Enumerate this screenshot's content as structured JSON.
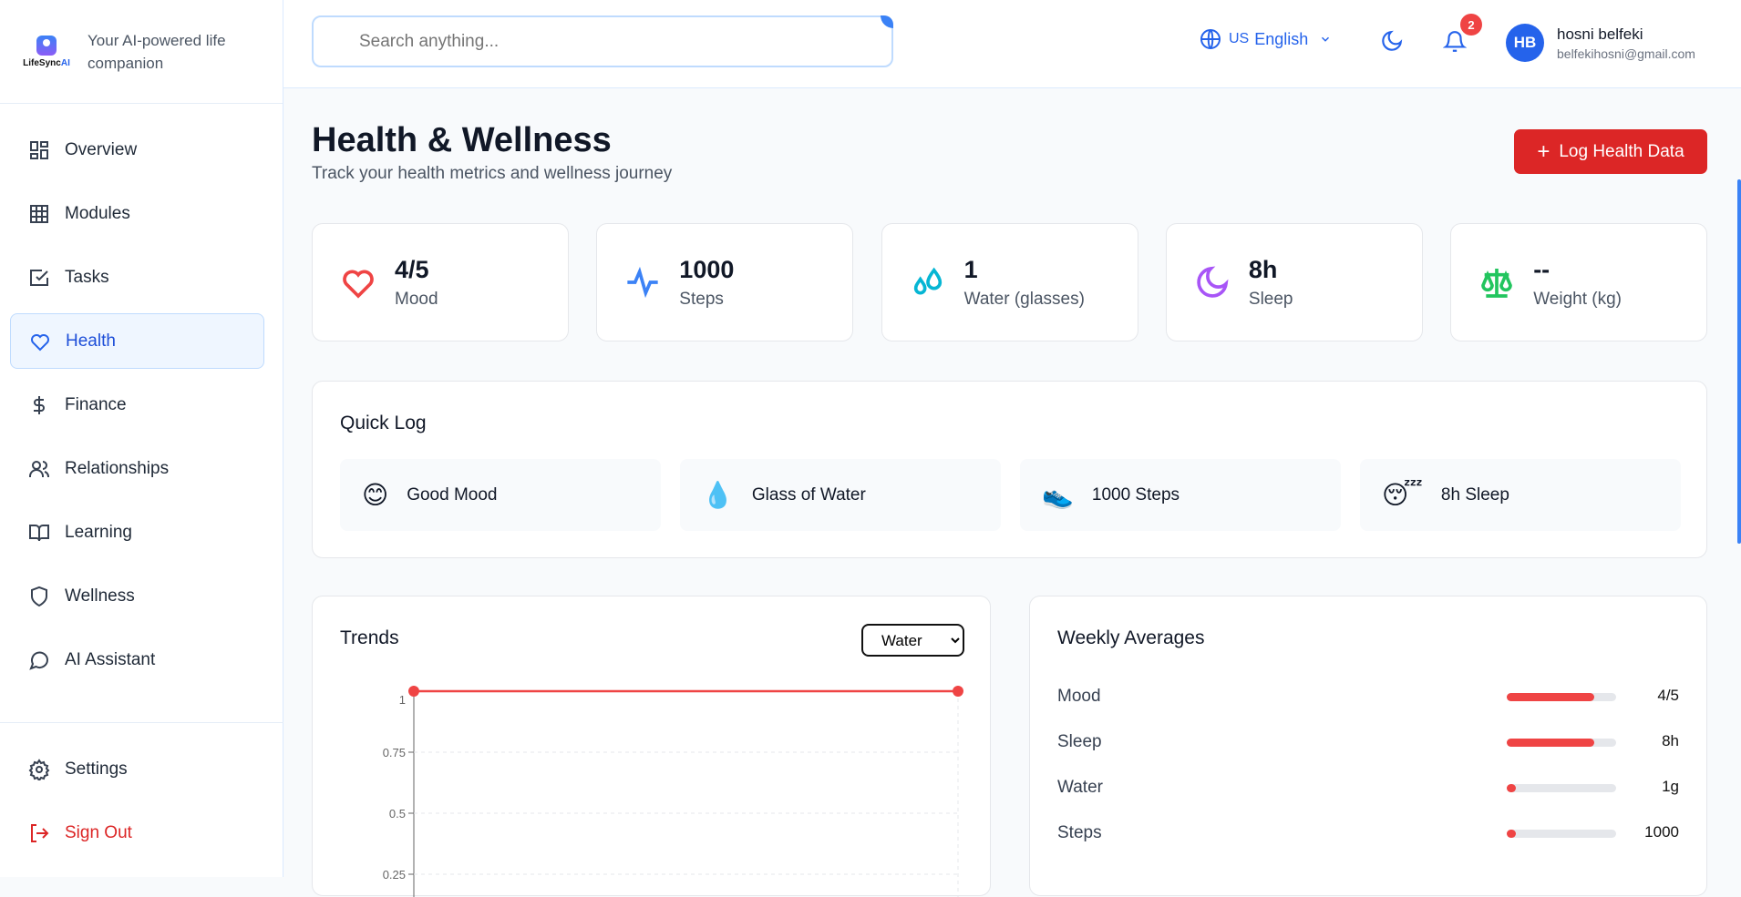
{
  "brand": {
    "logo_text": "LifeSync",
    "logo_accent": "AI",
    "tagline": "Your AI-powered life companion"
  },
  "sidebar": {
    "items": [
      {
        "label": "Overview",
        "icon": "grid-icon"
      },
      {
        "label": "Modules",
        "icon": "table-icon"
      },
      {
        "label": "Tasks",
        "icon": "checkbox-icon"
      },
      {
        "label": "Health",
        "icon": "heart-icon",
        "active": true
      },
      {
        "label": "Finance",
        "icon": "dollar-icon"
      },
      {
        "label": "Relationships",
        "icon": "users-icon"
      },
      {
        "label": "Learning",
        "icon": "book-icon"
      },
      {
        "label": "Wellness",
        "icon": "shield-icon"
      },
      {
        "label": "AI Assistant",
        "icon": "chat-icon"
      }
    ],
    "settings": "Settings",
    "signout": "Sign Out"
  },
  "header": {
    "search_placeholder": "Search anything...",
    "lang_code": "US",
    "lang": "English",
    "notifications": "2",
    "user": {
      "initials": "HB",
      "name": "hosni belfeki",
      "email": "belfekihosni@gmail.com"
    }
  },
  "page": {
    "title": "Health & Wellness",
    "subtitle": "Track your health metrics and wellness journey",
    "log_button": "Log Health Data"
  },
  "stats": [
    {
      "value": "4/5",
      "label": "Mood",
      "color": "#ef4444"
    },
    {
      "value": "1000",
      "label": "Steps",
      "color": "#3b82f6"
    },
    {
      "value": "1",
      "label": "Water (glasses)",
      "color": "#06b6d4"
    },
    {
      "value": "8h",
      "label": "Sleep",
      "color": "#a855f7"
    },
    {
      "value": "--",
      "label": "Weight (kg)",
      "color": "#22c55e"
    }
  ],
  "quick_log": {
    "title": "Quick Log",
    "items": [
      {
        "emoji": "😊",
        "label": "Good Mood"
      },
      {
        "emoji": "💧",
        "label": "Glass of Water"
      },
      {
        "emoji": "👟",
        "label": "1000 Steps"
      },
      {
        "emoji": "😴",
        "label": "8h Sleep"
      }
    ]
  },
  "trends": {
    "title": "Trends",
    "selected": "Water"
  },
  "chart_data": {
    "type": "line",
    "title": "",
    "series": [
      {
        "values": [
          1,
          1
        ],
        "color": "#ef4444"
      }
    ],
    "yticks": [
      "1",
      "0.75",
      "0.5",
      "0.25"
    ],
    "ylim": [
      0,
      1
    ],
    "grid": true
  },
  "weekly": {
    "title": "Weekly Averages",
    "rows": [
      {
        "label": "Mood",
        "value": "4/5",
        "fill": 0.8
      },
      {
        "label": "Sleep",
        "value": "8h",
        "fill": 0.8
      },
      {
        "label": "Water",
        "value": "1g",
        "fill": 0.08
      },
      {
        "label": "Steps",
        "value": "1000",
        "fill": 0.08
      }
    ]
  }
}
